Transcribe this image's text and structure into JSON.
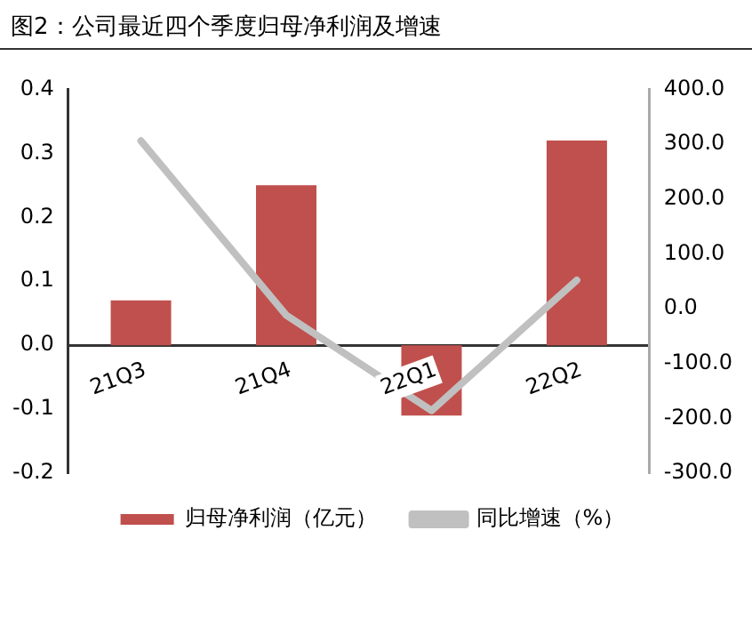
{
  "chart_data": {
    "type": "bar",
    "title": "图2：公司最近四个季度归母净利润及增速",
    "categories": [
      "21Q3",
      "21Q4",
      "22Q1",
      "22Q2"
    ],
    "series": [
      {
        "name": "归母净利润（亿元）",
        "color": "#c0504d",
        "values": [
          0.07,
          0.25,
          -0.11,
          0.32
        ]
      },
      {
        "name": "同比增速（%）",
        "type": "line",
        "axis": "y2",
        "color": "#c0c0c0",
        "values": [
          306,
          -12,
          -186,
          52
        ]
      }
    ],
    "ylim": [
      -0.2,
      0.4
    ],
    "yticks": [
      {
        "value": -0.2,
        "label": "-0.2"
      },
      {
        "value": -0.1,
        "label": "-0.1"
      },
      {
        "value": 0,
        "label": "0.0"
      },
      {
        "value": 0.1,
        "label": "0.1"
      },
      {
        "value": 0.2,
        "label": "0.2"
      },
      {
        "value": 0.3,
        "label": "0.3"
      },
      {
        "value": 0.4,
        "label": "0.4"
      }
    ],
    "y2lim": [
      -300,
      400
    ],
    "y2ticks": [
      {
        "value": -300,
        "label": "-300.0"
      },
      {
        "value": -200,
        "label": "-200.0"
      },
      {
        "value": -100,
        "label": "-100.0"
      },
      {
        "value": 0,
        "label": "0.0"
      },
      {
        "value": 100,
        "label": "100.0"
      },
      {
        "value": 200,
        "label": "200.0"
      },
      {
        "value": 300,
        "label": "300.0"
      },
      {
        "value": 400,
        "label": "400.0"
      }
    ],
    "grid": false,
    "legend": "bottom",
    "marker": "none"
  }
}
